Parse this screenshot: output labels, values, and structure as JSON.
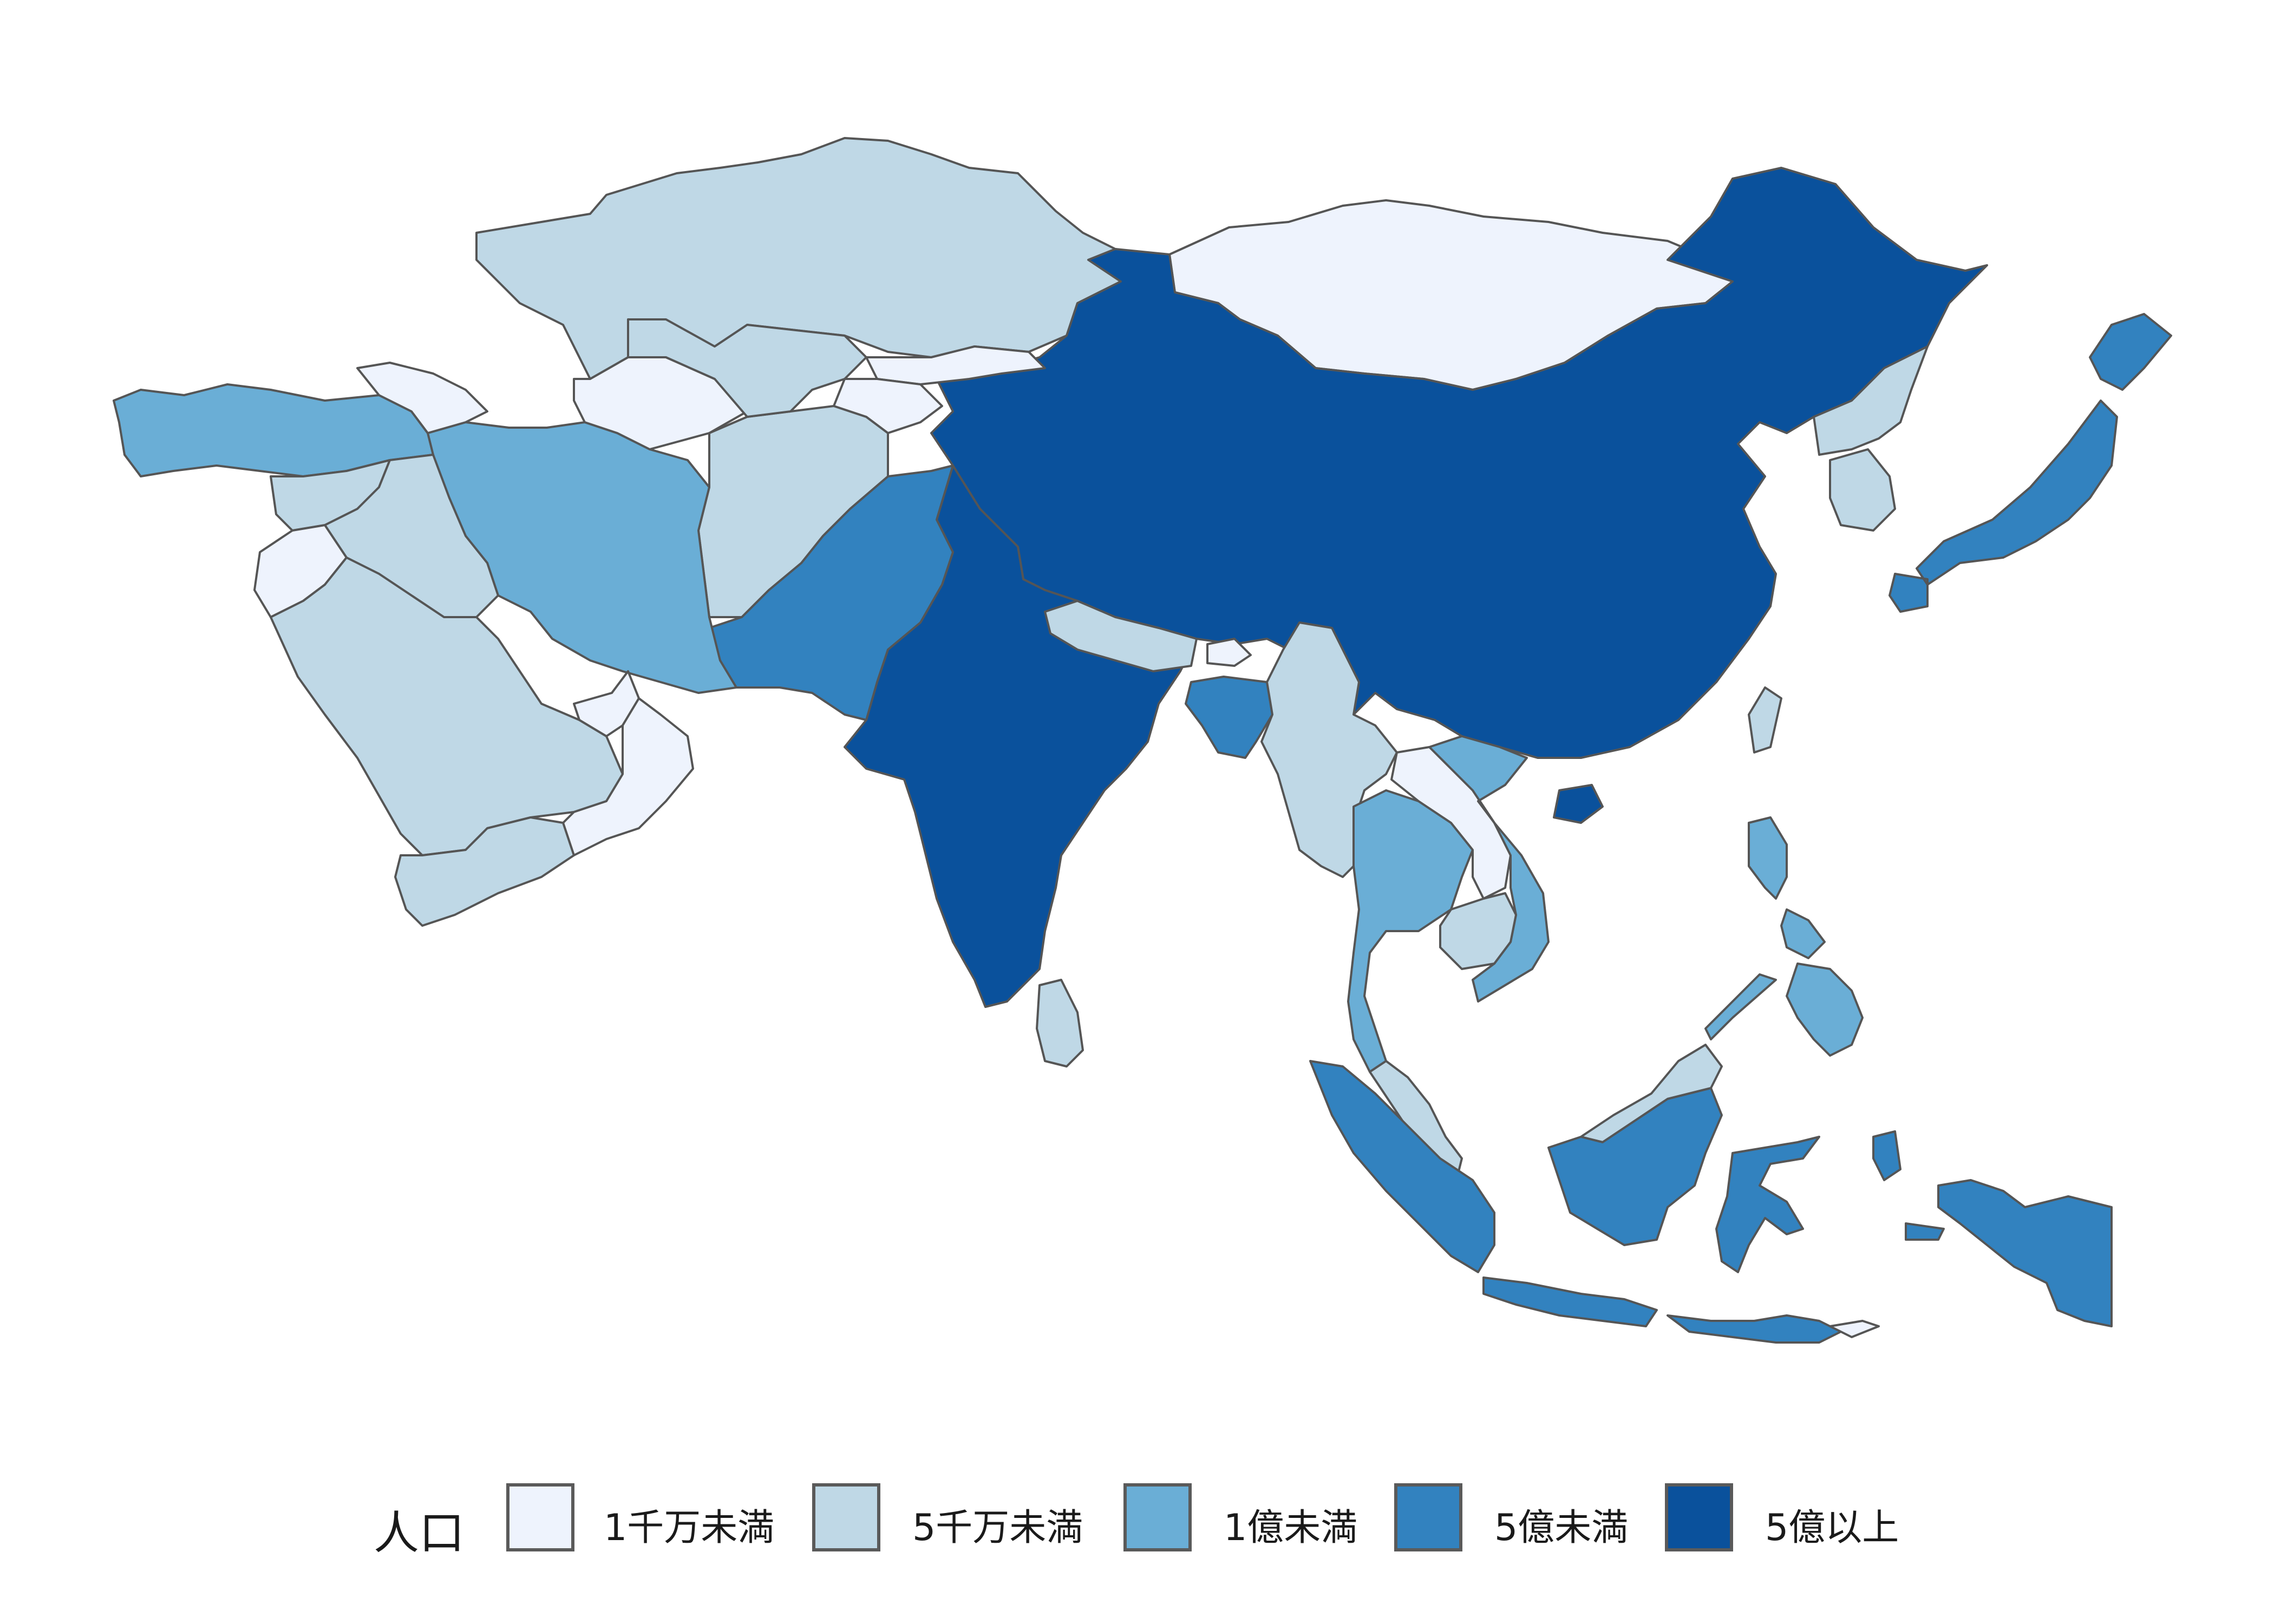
{
  "legend": {
    "title": "人口",
    "items": [
      {
        "label": "1千万未満",
        "color": "#eef3fd"
      },
      {
        "label": "5千万未満",
        "color": "#bfd8e6"
      },
      {
        "label": "1億未満",
        "color": "#6aaed6"
      },
      {
        "label": "5億未満",
        "color": "#3282bf"
      },
      {
        "label": "5億以上",
        "color": "#0a519c"
      }
    ]
  }
}
